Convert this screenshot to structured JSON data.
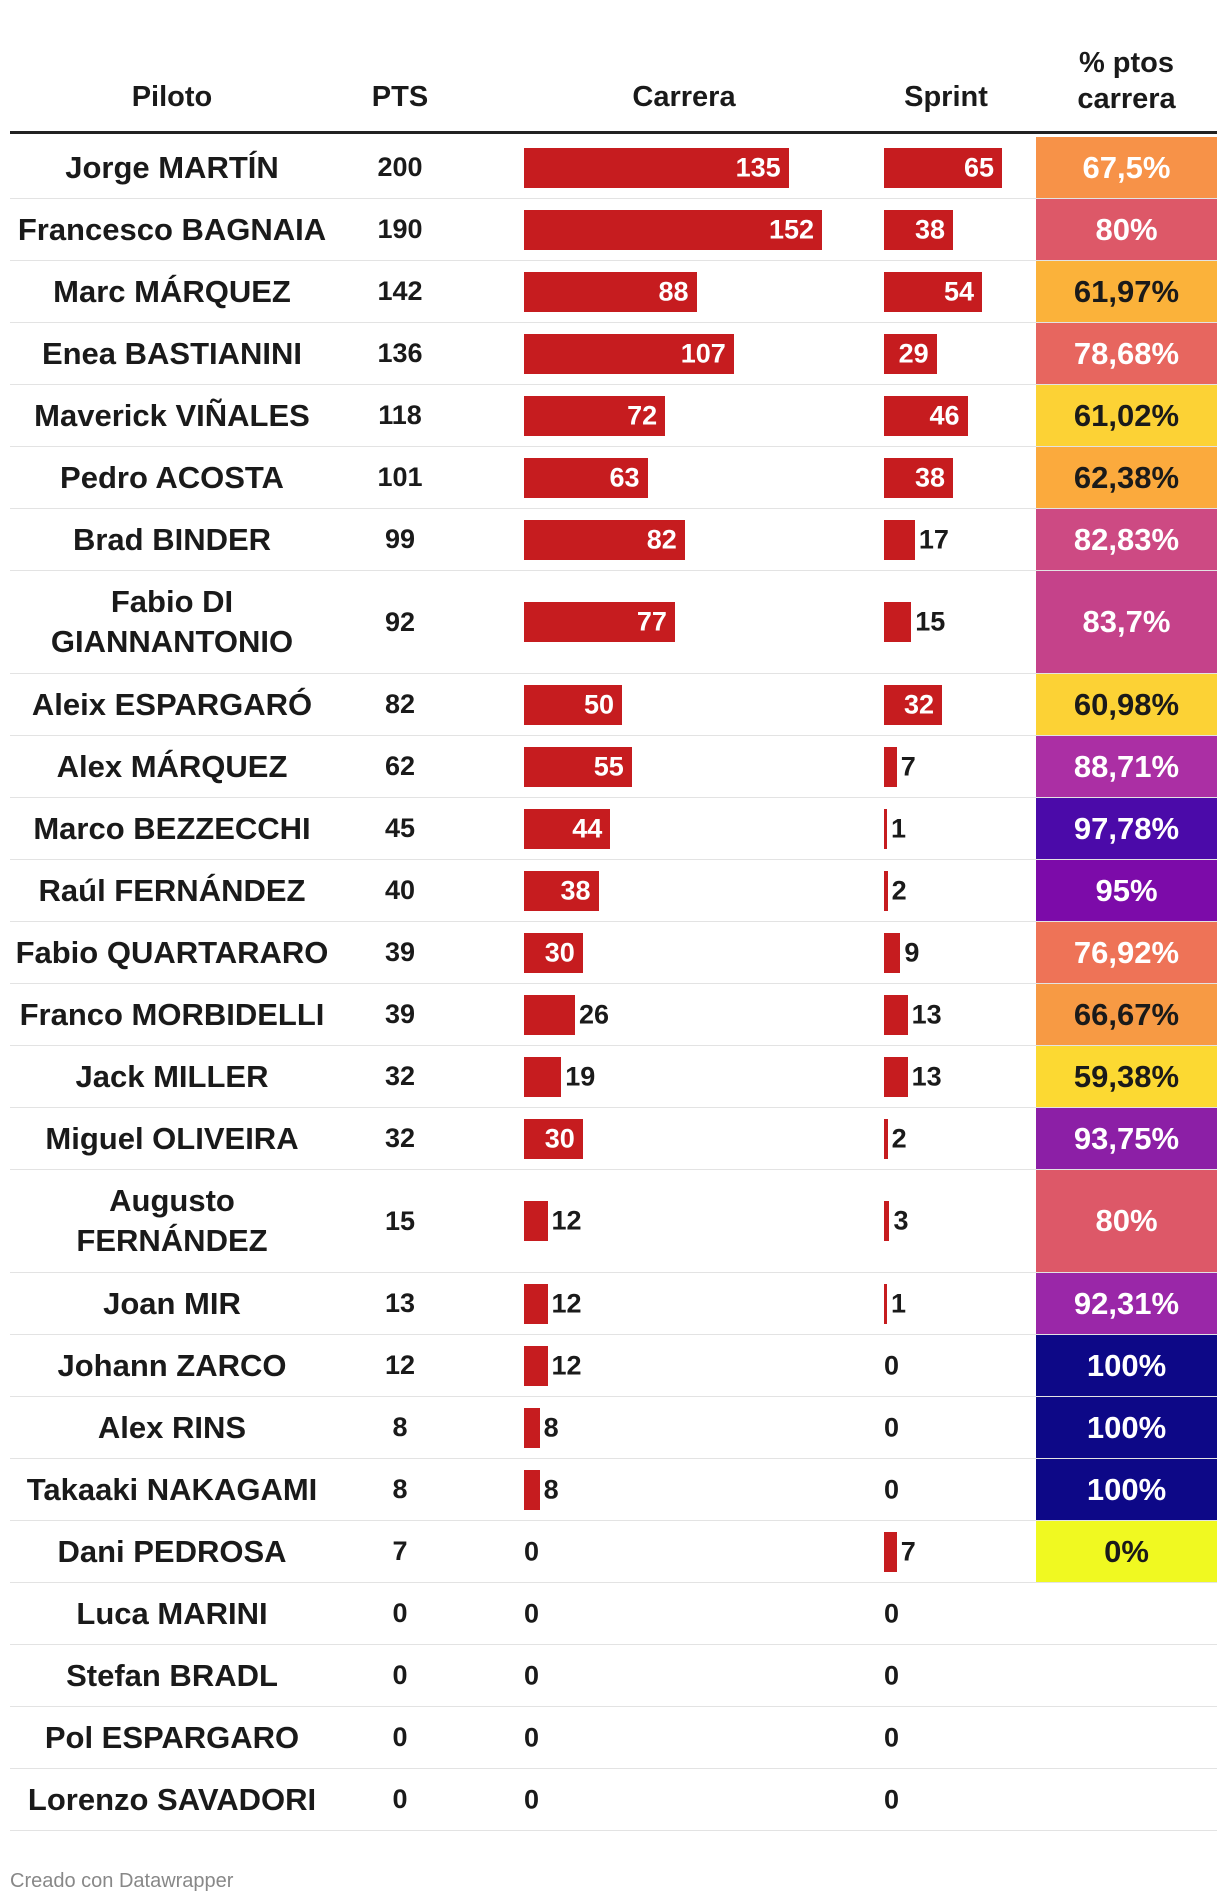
{
  "headers": {
    "piloto": "Piloto",
    "pts": "PTS",
    "carrera": "Carrera",
    "sprint": "Sprint",
    "pct_line1": "% ptos",
    "pct_line2": "carrera"
  },
  "footer": "Creado con Datawrapper",
  "colors": {
    "bar": "#c61c1f",
    "header_rule": "#222222",
    "row_divider": "#e3e3e3"
  },
  "chart_data": {
    "type": "table",
    "columns": [
      "Piloto",
      "PTS",
      "Carrera",
      "Sprint",
      "% ptos carrera"
    ],
    "carrera_max": 152,
    "sprint_max": 65,
    "rows": [
      {
        "name": "Jorge MARTÍN",
        "pts": "200",
        "carrera": 135,
        "sprint": 65,
        "pct": "67,5%",
        "color": "#f79248",
        "text_color": "#ffffff"
      },
      {
        "name": "Francesco BAGNAIA",
        "pts": "190",
        "carrera": 152,
        "sprint": 38,
        "pct": "80%",
        "color": "#dd5868",
        "text_color": "#ffffff"
      },
      {
        "name": "Marc MÁRQUEZ",
        "pts": "142",
        "carrera": 88,
        "sprint": 54,
        "pct": "61,97%",
        "color": "#fbb23a",
        "text_color": "#1a1a1a"
      },
      {
        "name": "Enea BASTIANINI",
        "pts": "136",
        "carrera": 107,
        "sprint": 29,
        "pct": "78,68%",
        "color": "#e7665f",
        "text_color": "#ffffff"
      },
      {
        "name": "Maverick VIÑALES",
        "pts": "118",
        "carrera": 72,
        "sprint": 46,
        "pct": "61,02%",
        "color": "#fcd235",
        "text_color": "#1a1a1a"
      },
      {
        "name": "Pedro ACOSTA",
        "pts": "101",
        "carrera": 63,
        "sprint": 38,
        "pct": "62,38%",
        "color": "#fbaa3d",
        "text_color": "#1a1a1a"
      },
      {
        "name": "Brad BINDER",
        "pts": "99",
        "carrera": 82,
        "sprint": 17,
        "pct": "82,83%",
        "color": "#cd4a83",
        "text_color": "#ffffff"
      },
      {
        "name": "Fabio DI GIANNANTONIO",
        "pts": "92",
        "carrera": 77,
        "sprint": 15,
        "pct": "83,7%",
        "color": "#c5428a",
        "text_color": "#ffffff",
        "tall": true
      },
      {
        "name": "Aleix ESPARGARÓ",
        "pts": "82",
        "carrera": 50,
        "sprint": 32,
        "pct": "60,98%",
        "color": "#fcd235",
        "text_color": "#1a1a1a"
      },
      {
        "name": "Alex MÁRQUEZ",
        "pts": "62",
        "carrera": 55,
        "sprint": 7,
        "pct": "88,71%",
        "color": "#ab2fa4",
        "text_color": "#ffffff"
      },
      {
        "name": "Marco BEZZECCHI",
        "pts": "45",
        "carrera": 44,
        "sprint": 1,
        "pct": "97,78%",
        "color": "#4b0aa9",
        "text_color": "#ffffff"
      },
      {
        "name": "Raúl FERNÁNDEZ",
        "pts": "40",
        "carrera": 38,
        "sprint": 2,
        "pct": "95%",
        "color": "#7c0ba9",
        "text_color": "#ffffff"
      },
      {
        "name": "Fabio QUARTARARO",
        "pts": "39",
        "carrera": 30,
        "sprint": 9,
        "pct": "76,92%",
        "color": "#ee7357",
        "text_color": "#ffffff"
      },
      {
        "name": "Franco MORBIDELLI",
        "pts": "39",
        "carrera": 26,
        "sprint": 13,
        "pct": "66,67%",
        "color": "#f79a44",
        "text_color": "#1a1a1a"
      },
      {
        "name": "Jack MILLER",
        "pts": "32",
        "carrera": 19,
        "sprint": 13,
        "pct": "59,38%",
        "color": "#fcd932",
        "text_color": "#1a1a1a"
      },
      {
        "name": "Miguel OLIVEIRA",
        "pts": "32",
        "carrera": 30,
        "sprint": 2,
        "pct": "93,75%",
        "color": "#8c1fa6",
        "text_color": "#ffffff"
      },
      {
        "name": "Augusto FERNÁNDEZ",
        "pts": "15",
        "carrera": 12,
        "sprint": 3,
        "pct": "80%",
        "color": "#dd5868",
        "text_color": "#ffffff",
        "tall": true
      },
      {
        "name": "Joan MIR",
        "pts": "13",
        "carrera": 12,
        "sprint": 1,
        "pct": "92,31%",
        "color": "#9a27a8",
        "text_color": "#ffffff"
      },
      {
        "name": "Johann ZARCO",
        "pts": "12",
        "carrera": 12,
        "sprint": 0,
        "pct": "100%",
        "color": "#0d0887",
        "text_color": "#ffffff"
      },
      {
        "name": "Alex RINS",
        "pts": "8",
        "carrera": 8,
        "sprint": 0,
        "pct": "100%",
        "color": "#0d0887",
        "text_color": "#ffffff"
      },
      {
        "name": "Takaaki NAKAGAMI",
        "pts": "8",
        "carrera": 8,
        "sprint": 0,
        "pct": "100%",
        "color": "#0d0887",
        "text_color": "#ffffff"
      },
      {
        "name": "Dani PEDROSA",
        "pts": "7",
        "carrera": 0,
        "sprint": 7,
        "pct": "0%",
        "color": "#f0f921",
        "text_color": "#1a1a1a"
      },
      {
        "name": "Luca MARINI",
        "pts": "0",
        "carrera": 0,
        "sprint": 0,
        "pct": "",
        "color": "",
        "text_color": "#1a1a1a"
      },
      {
        "name": "Stefan BRADL",
        "pts": "0",
        "carrera": 0,
        "sprint": 0,
        "pct": "",
        "color": "",
        "text_color": "#1a1a1a"
      },
      {
        "name": "Pol ESPARGARO",
        "pts": "0",
        "carrera": 0,
        "sprint": 0,
        "pct": "",
        "color": "",
        "text_color": "#1a1a1a"
      },
      {
        "name": "Lorenzo SAVADORI",
        "pts": "0",
        "carrera": 0,
        "sprint": 0,
        "pct": "",
        "color": "",
        "text_color": "#1a1a1a"
      }
    ]
  }
}
